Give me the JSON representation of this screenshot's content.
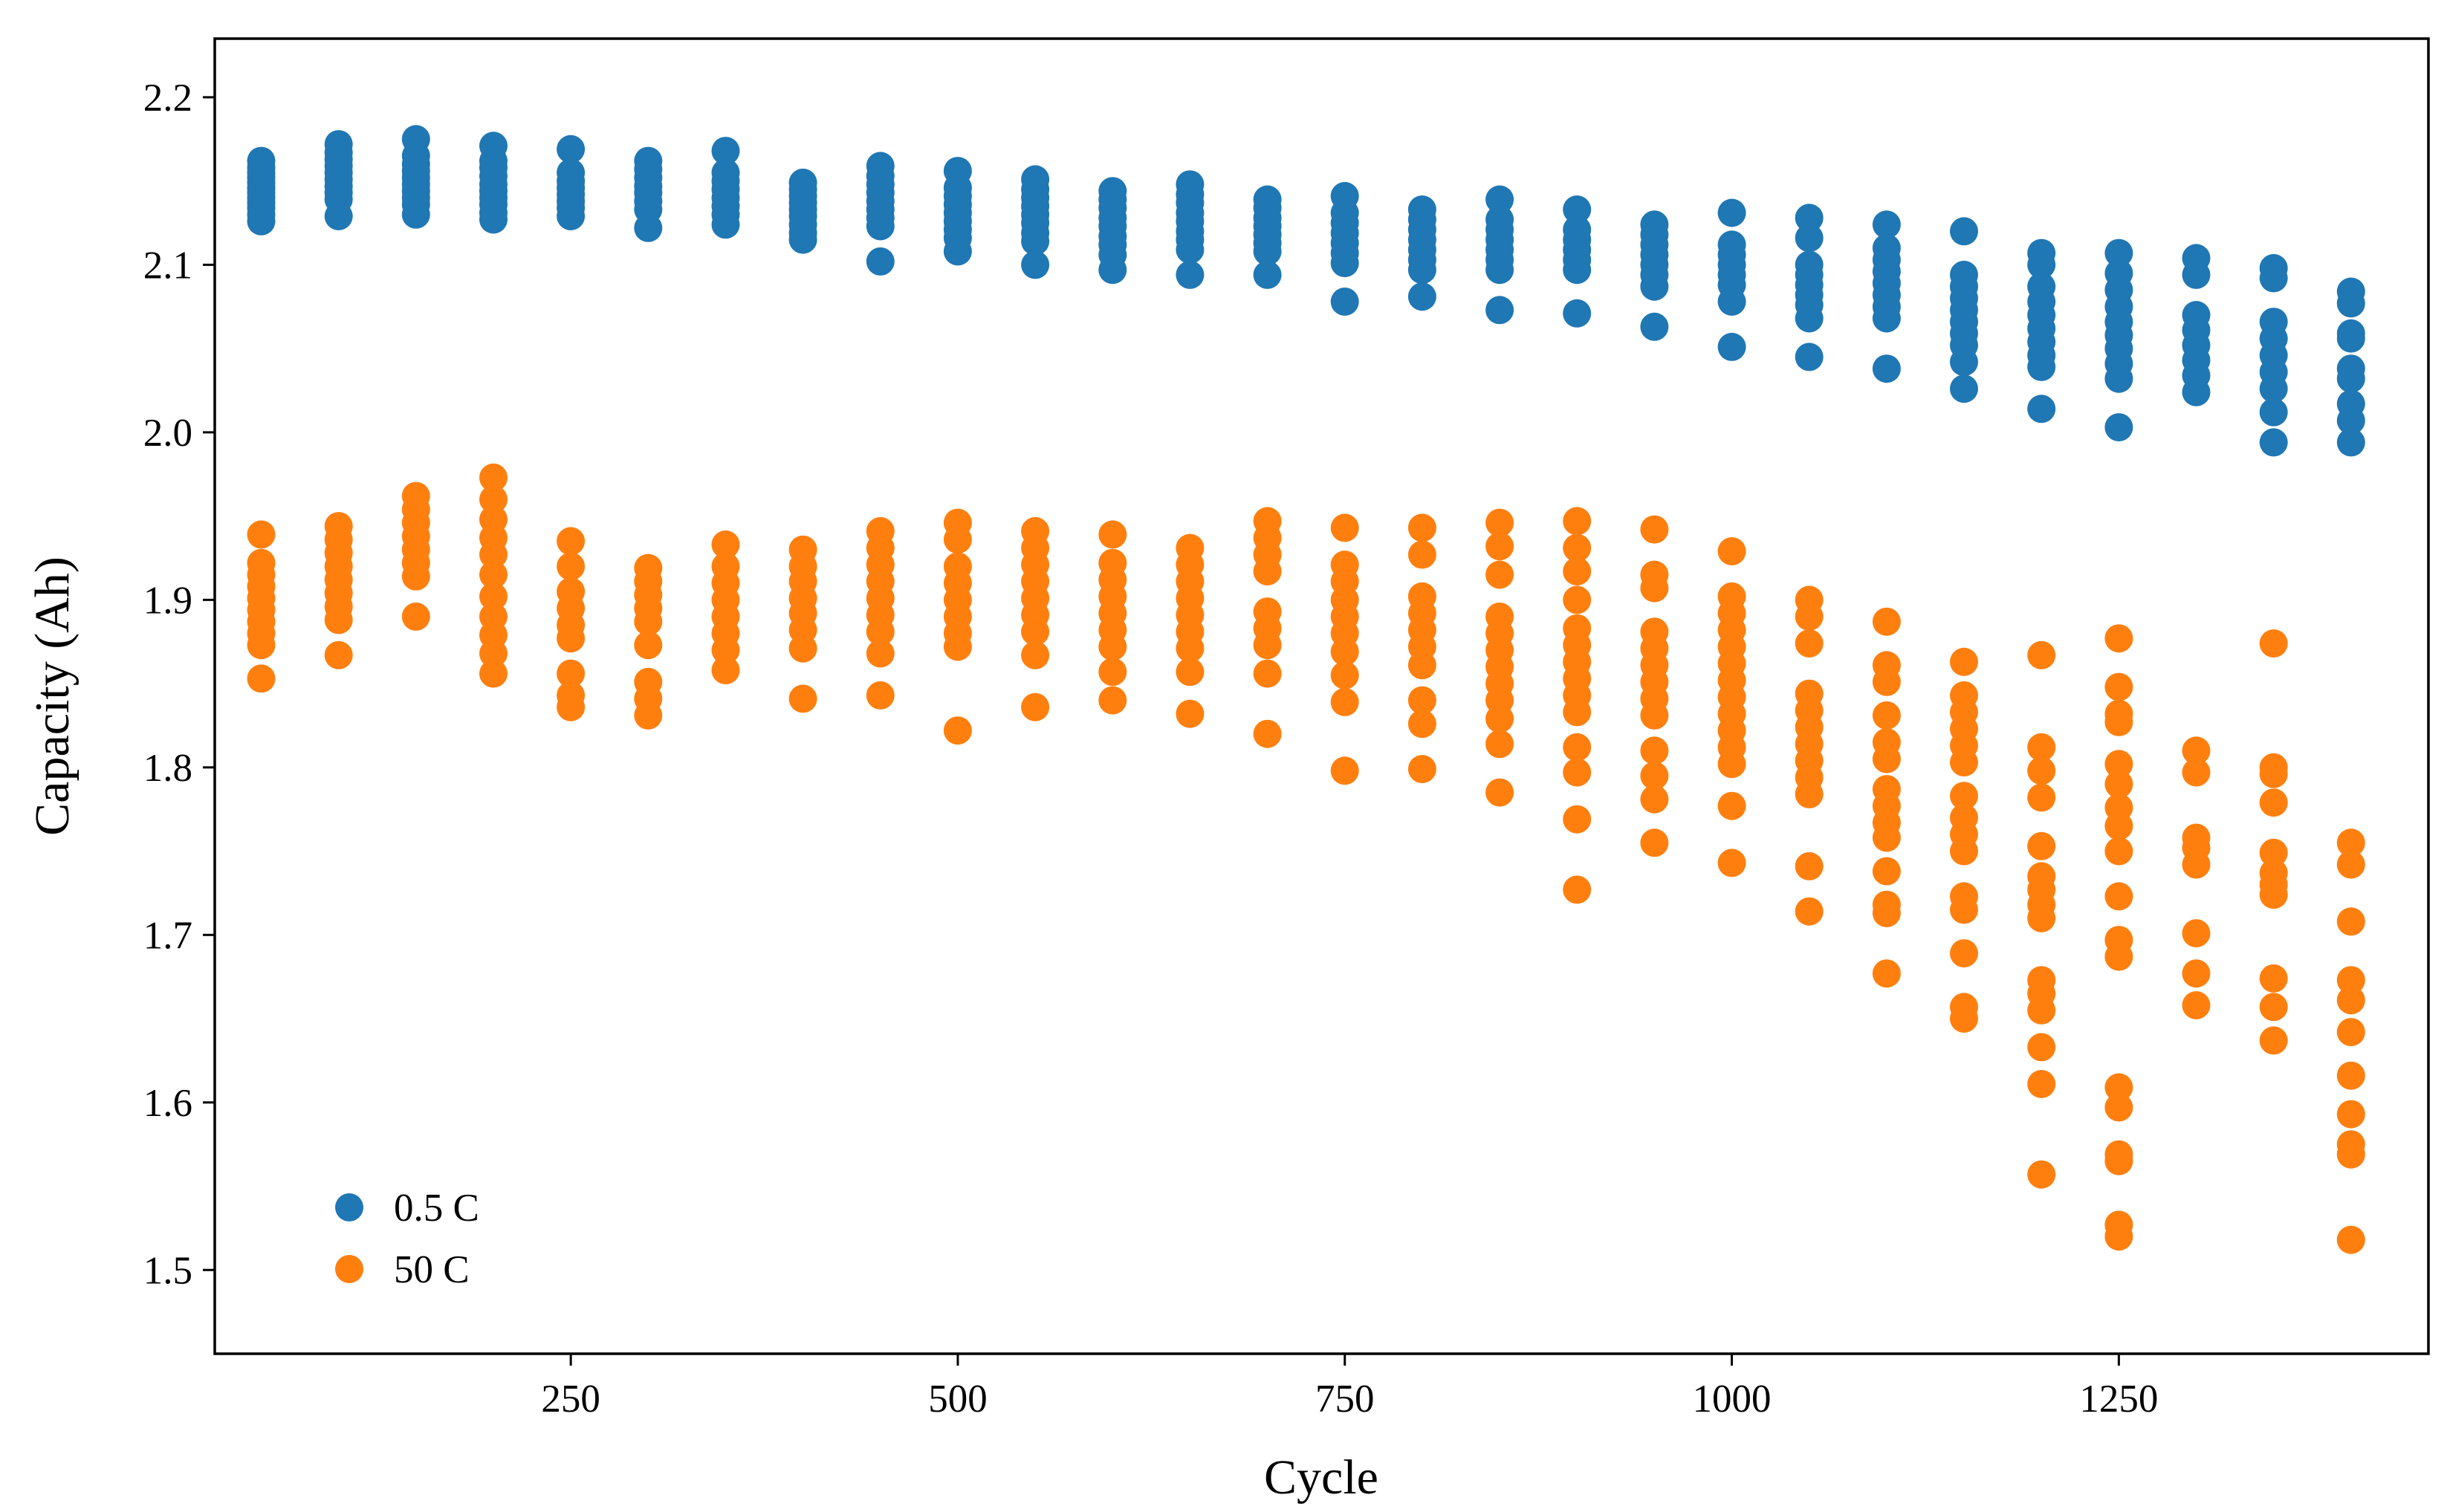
{
  "chart_data": {
    "type": "scatter",
    "title": "",
    "xlabel": "Cycle",
    "ylabel": "Capacity (Ah)",
    "xlim": [
      20,
      1450
    ],
    "ylim": [
      1.45,
      2.235
    ],
    "x_ticks": [
      250,
      500,
      750,
      1000,
      1250
    ],
    "x_tick_labels": [
      "250",
      "500",
      "750",
      "1000",
      "1250"
    ],
    "y_ticks": [
      1.5,
      1.6,
      1.7,
      1.8,
      1.9,
      2.0,
      2.1,
      2.2
    ],
    "y_tick_labels": [
      "1.5",
      "1.6",
      "1.7",
      "1.8",
      "1.9",
      "2.0",
      "2.1",
      "2.2"
    ],
    "grid": false,
    "legend_position": "lower-left",
    "series": [
      {
        "name": "0.5 C",
        "color": "#1f77b4",
        "points": [
          {
            "x": 50,
            "values": [
              2.162,
              2.158,
              2.155,
              2.152,
              2.149,
              2.146,
              2.143,
              2.14,
              2.137,
              2.134,
              2.13,
              2.126
            ]
          },
          {
            "x": 100,
            "values": [
              2.172,
              2.167,
              2.163,
              2.159,
              2.155,
              2.151,
              2.147,
              2.143,
              2.139,
              2.129
            ]
          },
          {
            "x": 150,
            "values": [
              2.175,
              2.165,
              2.16,
              2.156,
              2.152,
              2.148,
              2.144,
              2.14,
              2.136,
              2.13
            ]
          },
          {
            "x": 200,
            "values": [
              2.171,
              2.162,
              2.158,
              2.153,
              2.148,
              2.144,
              2.14,
              2.136,
              2.131,
              2.127
            ]
          },
          {
            "x": 250,
            "values": [
              2.169,
              2.155,
              2.15,
              2.146,
              2.142,
              2.138,
              2.134,
              2.129
            ]
          },
          {
            "x": 300,
            "values": [
              2.162,
              2.157,
              2.152,
              2.147,
              2.143,
              2.138,
              2.133,
              2.122
            ]
          },
          {
            "x": 350,
            "values": [
              2.168,
              2.155,
              2.15,
              2.145,
              2.14,
              2.135,
              2.13,
              2.124
            ]
          },
          {
            "x": 400,
            "values": [
              2.149,
              2.145,
              2.141,
              2.137,
              2.133,
              2.129,
              2.124,
              2.119,
              2.115
            ]
          },
          {
            "x": 450,
            "values": [
              2.159,
              2.153,
              2.148,
              2.143,
              2.138,
              2.133,
              2.128,
              2.123,
              2.102
            ]
          },
          {
            "x": 500,
            "values": [
              2.156,
              2.146,
              2.141,
              2.136,
              2.131,
              2.126,
              2.121,
              2.116,
              2.108
            ]
          },
          {
            "x": 550,
            "values": [
              2.151,
              2.145,
              2.14,
              2.135,
              2.13,
              2.125,
              2.119,
              2.114,
              2.1
            ]
          },
          {
            "x": 600,
            "values": [
              2.144,
              2.139,
              2.134,
              2.128,
              2.123,
              2.117,
              2.112,
              2.106,
              2.097
            ]
          },
          {
            "x": 650,
            "values": [
              2.148,
              2.142,
              2.137,
              2.131,
              2.126,
              2.12,
              2.115,
              2.109,
              2.094
            ]
          },
          {
            "x": 700,
            "values": [
              2.139,
              2.134,
              2.128,
              2.123,
              2.118,
              2.113,
              2.108,
              2.094
            ]
          },
          {
            "x": 750,
            "values": [
              2.141,
              2.131,
              2.125,
              2.119,
              2.113,
              2.107,
              2.101,
              2.078
            ]
          },
          {
            "x": 800,
            "values": [
              2.133,
              2.127,
              2.121,
              2.115,
              2.109,
              2.103,
              2.097,
              2.081
            ]
          },
          {
            "x": 850,
            "values": [
              2.139,
              2.127,
              2.121,
              2.115,
              2.109,
              2.103,
              2.097,
              2.073
            ]
          },
          {
            "x": 900,
            "values": [
              2.133,
              2.121,
              2.115,
              2.109,
              2.103,
              2.097,
              2.071
            ]
          },
          {
            "x": 950,
            "values": [
              2.124,
              2.118,
              2.112,
              2.106,
              2.1,
              2.094,
              2.087,
              2.063
            ]
          },
          {
            "x": 1000,
            "values": [
              2.131,
              2.112,
              2.106,
              2.1,
              2.094,
              2.088,
              2.078,
              2.051
            ]
          },
          {
            "x": 1050,
            "values": [
              2.128,
              2.116,
              2.1,
              2.094,
              2.088,
              2.082,
              2.076,
              2.068,
              2.045
            ]
          },
          {
            "x": 1100,
            "values": [
              2.124,
              2.11,
              2.103,
              2.096,
              2.089,
              2.082,
              2.075,
              2.068,
              2.038
            ]
          },
          {
            "x": 1150,
            "values": [
              2.12,
              2.094,
              2.087,
              2.08,
              2.073,
              2.066,
              2.059,
              2.052,
              2.042,
              2.026
            ]
          },
          {
            "x": 1200,
            "values": [
              2.107,
              2.1,
              2.087,
              2.078,
              2.07,
              2.062,
              2.054,
              2.046,
              2.039,
              2.014
            ]
          },
          {
            "x": 1250,
            "values": [
              2.107,
              2.095,
              2.085,
              2.075,
              2.066,
              2.058,
              2.05,
              2.041,
              2.032,
              2.003
            ]
          },
          {
            "x": 1300,
            "values": [
              2.104,
              2.094,
              2.07,
              2.061,
              2.052,
              2.043,
              2.034,
              2.024
            ]
          },
          {
            "x": 1350,
            "values": [
              2.098,
              2.092,
              2.066,
              2.056,
              2.046,
              2.036,
              2.026,
              2.012,
              1.994
            ]
          },
          {
            "x": 1400,
            "values": [
              2.084,
              2.077,
              2.059,
              2.056,
              2.038,
              2.032,
              2.017,
              2.007,
              1.994
            ]
          }
        ]
      },
      {
        "name": "50 C",
        "color": "#ff7f0e",
        "points": [
          {
            "x": 50,
            "values": [
              1.939,
              1.922,
              1.915,
              1.908,
              1.901,
              1.894,
              1.887,
              1.88,
              1.873,
              1.853
            ]
          },
          {
            "x": 100,
            "values": [
              1.944,
              1.936,
              1.928,
              1.92,
              1.912,
              1.904,
              1.896,
              1.888,
              1.867
            ]
          },
          {
            "x": 150,
            "values": [
              1.962,
              1.954,
              1.946,
              1.938,
              1.93,
              1.922,
              1.914,
              1.89
            ]
          },
          {
            "x": 200,
            "values": [
              1.973,
              1.96,
              1.948,
              1.937,
              1.927,
              1.915,
              1.902,
              1.89,
              1.879,
              1.868,
              1.856
            ]
          },
          {
            "x": 250,
            "values": [
              1.935,
              1.92,
              1.905,
              1.895,
              1.885,
              1.877,
              1.856,
              1.843,
              1.836
            ]
          },
          {
            "x": 300,
            "values": [
              1.919,
              1.911,
              1.903,
              1.895,
              1.887,
              1.873,
              1.851,
              1.841,
              1.831
            ]
          },
          {
            "x": 350,
            "values": [
              1.933,
              1.92,
              1.91,
              1.9,
              1.89,
              1.88,
              1.87,
              1.858
            ]
          },
          {
            "x": 400,
            "values": [
              1.93,
              1.92,
              1.911,
              1.901,
              1.892,
              1.882,
              1.871,
              1.841
            ]
          },
          {
            "x": 450,
            "values": [
              1.941,
              1.931,
              1.921,
              1.911,
              1.901,
              1.891,
              1.881,
              1.868,
              1.843
            ]
          },
          {
            "x": 500,
            "values": [
              1.946,
              1.936,
              1.92,
              1.91,
              1.9,
              1.89,
              1.88,
              1.872,
              1.822
            ]
          },
          {
            "x": 550,
            "values": [
              1.941,
              1.931,
              1.921,
              1.911,
              1.901,
              1.891,
              1.881,
              1.867,
              1.836
            ]
          },
          {
            "x": 600,
            "values": [
              1.939,
              1.922,
              1.912,
              1.902,
              1.892,
              1.882,
              1.872,
              1.857,
              1.84
            ]
          },
          {
            "x": 650,
            "values": [
              1.931,
              1.921,
              1.911,
              1.901,
              1.891,
              1.881,
              1.871,
              1.857,
              1.832
            ]
          },
          {
            "x": 700,
            "values": [
              1.947,
              1.937,
              1.927,
              1.917,
              1.893,
              1.883,
              1.873,
              1.856,
              1.82
            ]
          },
          {
            "x": 750,
            "values": [
              1.943,
              1.921,
              1.911,
              1.9,
              1.89,
              1.88,
              1.869,
              1.855,
              1.839,
              1.798
            ]
          },
          {
            "x": 800,
            "values": [
              1.943,
              1.927,
              1.902,
              1.892,
              1.882,
              1.872,
              1.861,
              1.84,
              1.826,
              1.799
            ]
          },
          {
            "x": 850,
            "values": [
              1.946,
              1.932,
              1.915,
              1.89,
              1.88,
              1.87,
              1.86,
              1.85,
              1.84,
              1.829,
              1.814,
              1.785
            ]
          },
          {
            "x": 900,
            "values": [
              1.947,
              1.931,
              1.917,
              1.9,
              1.883,
              1.873,
              1.863,
              1.853,
              1.843,
              1.833,
              1.812,
              1.797,
              1.769,
              1.727
            ]
          },
          {
            "x": 950,
            "values": [
              1.942,
              1.915,
              1.907,
              1.881,
              1.871,
              1.861,
              1.851,
              1.841,
              1.831,
              1.81,
              1.795,
              1.781,
              1.755
            ]
          },
          {
            "x": 1000,
            "values": [
              1.929,
              1.902,
              1.892,
              1.882,
              1.872,
              1.862,
              1.852,
              1.842,
              1.832,
              1.822,
              1.812,
              1.802,
              1.777,
              1.743
            ]
          },
          {
            "x": 1050,
            "values": [
              1.9,
              1.89,
              1.874,
              1.844,
              1.834,
              1.824,
              1.814,
              1.804,
              1.794,
              1.784,
              1.741,
              1.714
            ]
          },
          {
            "x": 1100,
            "values": [
              1.887,
              1.861,
              1.851,
              1.831,
              1.815,
              1.805,
              1.787,
              1.777,
              1.767,
              1.758,
              1.738,
              1.718,
              1.713,
              1.677
            ]
          },
          {
            "x": 1150,
            "values": [
              1.863,
              1.843,
              1.833,
              1.823,
              1.813,
              1.803,
              1.783,
              1.77,
              1.76,
              1.75,
              1.723,
              1.715,
              1.689,
              1.657,
              1.65
            ]
          },
          {
            "x": 1200,
            "values": [
              1.867,
              1.812,
              1.798,
              1.782,
              1.753,
              1.735,
              1.727,
              1.718,
              1.71,
              1.673,
              1.665,
              1.655,
              1.633,
              1.611,
              1.557
            ]
          },
          {
            "x": 1250,
            "values": [
              1.877,
              1.848,
              1.832,
              1.827,
              1.802,
              1.79,
              1.776,
              1.765,
              1.75,
              1.723,
              1.697,
              1.687,
              1.609,
              1.597,
              1.569,
              1.565,
              1.527,
              1.52
            ]
          },
          {
            "x": 1300,
            "values": [
              1.81,
              1.797,
              1.758,
              1.752,
              1.742,
              1.701,
              1.677,
              1.658
            ]
          },
          {
            "x": 1350,
            "values": [
              1.874,
              1.8,
              1.796,
              1.779,
              1.749,
              1.737,
              1.73,
              1.724,
              1.674,
              1.657,
              1.637
            ]
          },
          {
            "x": 1400,
            "values": [
              1.755,
              1.742,
              1.708,
              1.673,
              1.661,
              1.642,
              1.616,
              1.593,
              1.575,
              1.569,
              1.518
            ]
          }
        ]
      }
    ]
  }
}
